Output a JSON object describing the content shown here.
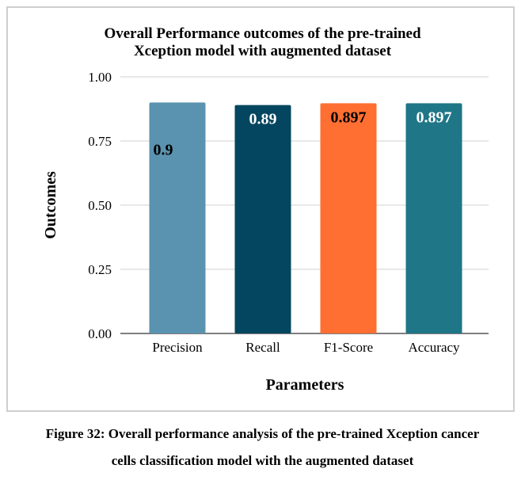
{
  "chart_data": {
    "type": "bar",
    "title_line1": "Overall Performance outcomes of the pre-trained",
    "title_line2": "Xception model with augmented dataset",
    "categories": [
      "Precision",
      "Recall",
      "F1-Score",
      "Accuracy"
    ],
    "values": [
      0.9,
      0.89,
      0.897,
      0.897
    ],
    "data_labels": [
      "0.9",
      "0.89",
      "0.897",
      "0.897"
    ],
    "colors": [
      "#5a93b0",
      "#04465f",
      "#ff6f31",
      "#1f7686"
    ],
    "label_colors": [
      "#000000",
      "#ffffff",
      "#000000",
      "#ffffff"
    ],
    "xlabel": "Parameters",
    "ylabel": "Outcomes",
    "ylim": [
      0,
      1
    ],
    "yticks": [
      "0.00",
      "0.25",
      "0.50",
      "0.75",
      "1.00"
    ],
    "grid": true
  },
  "caption": {
    "line1": "Figure 32: Overall performance analysis of the pre-trained Xception cancer",
    "line2": "cells classification model with the augmented dataset"
  }
}
